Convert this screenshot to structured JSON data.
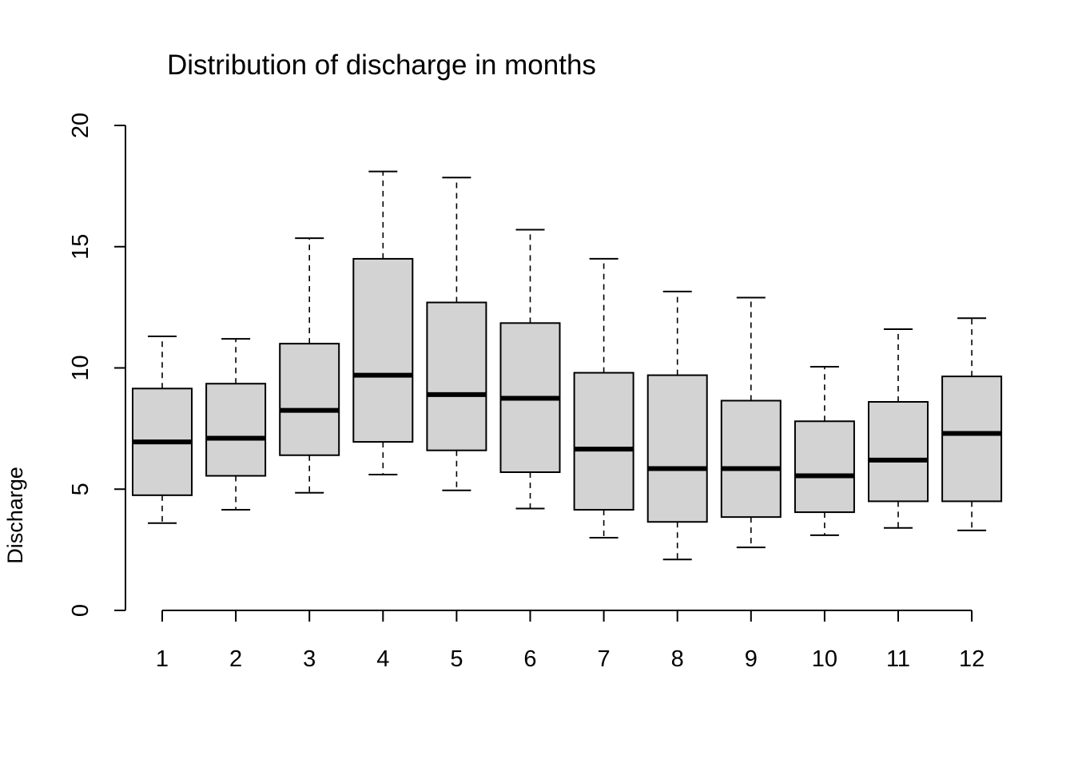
{
  "chart_data": {
    "type": "boxplot",
    "title": "Distribution of discharge in months",
    "xlabel": "",
    "ylabel": "Discharge",
    "ylim": [
      0,
      20
    ],
    "yticks": [
      0,
      5,
      10,
      15,
      20
    ],
    "grid": false,
    "legend": "none",
    "categories": [
      "1",
      "2",
      "3",
      "4",
      "5",
      "6",
      "7",
      "8",
      "9",
      "10",
      "11",
      "12"
    ],
    "boxes": [
      {
        "category": "1",
        "whisker_low": 3.6,
        "q1": 4.75,
        "median": 6.95,
        "q3": 9.15,
        "whisker_high": 11.3
      },
      {
        "category": "2",
        "whisker_low": 4.15,
        "q1": 5.55,
        "median": 7.1,
        "q3": 9.35,
        "whisker_high": 11.2
      },
      {
        "category": "3",
        "whisker_low": 4.85,
        "q1": 6.4,
        "median": 8.25,
        "q3": 11.0,
        "whisker_high": 15.35
      },
      {
        "category": "4",
        "whisker_low": 5.6,
        "q1": 6.95,
        "median": 9.7,
        "q3": 14.5,
        "whisker_high": 18.1
      },
      {
        "category": "5",
        "whisker_low": 4.95,
        "q1": 6.6,
        "median": 8.9,
        "q3": 12.7,
        "whisker_high": 17.85
      },
      {
        "category": "6",
        "whisker_low": 4.2,
        "q1": 5.7,
        "median": 8.75,
        "q3": 11.85,
        "whisker_high": 15.7
      },
      {
        "category": "7",
        "whisker_low": 3.0,
        "q1": 4.15,
        "median": 6.65,
        "q3": 9.8,
        "whisker_high": 14.5
      },
      {
        "category": "8",
        "whisker_low": 2.1,
        "q1": 3.65,
        "median": 5.85,
        "q3": 9.7,
        "whisker_high": 13.15
      },
      {
        "category": "9",
        "whisker_low": 2.6,
        "q1": 3.85,
        "median": 5.85,
        "q3": 8.65,
        "whisker_high": 12.9
      },
      {
        "category": "10",
        "whisker_low": 3.1,
        "q1": 4.05,
        "median": 5.55,
        "q3": 7.8,
        "whisker_high": 10.05
      },
      {
        "category": "11",
        "whisker_low": 3.4,
        "q1": 4.5,
        "median": 6.2,
        "q3": 8.6,
        "whisker_high": 11.6
      },
      {
        "category": "12",
        "whisker_low": 3.3,
        "q1": 4.5,
        "median": 7.3,
        "q3": 9.65,
        "whisker_high": 12.05
      }
    ],
    "colors": {
      "box_fill": "#d3d3d3",
      "stroke": "#000000",
      "background": "#ffffff"
    }
  }
}
